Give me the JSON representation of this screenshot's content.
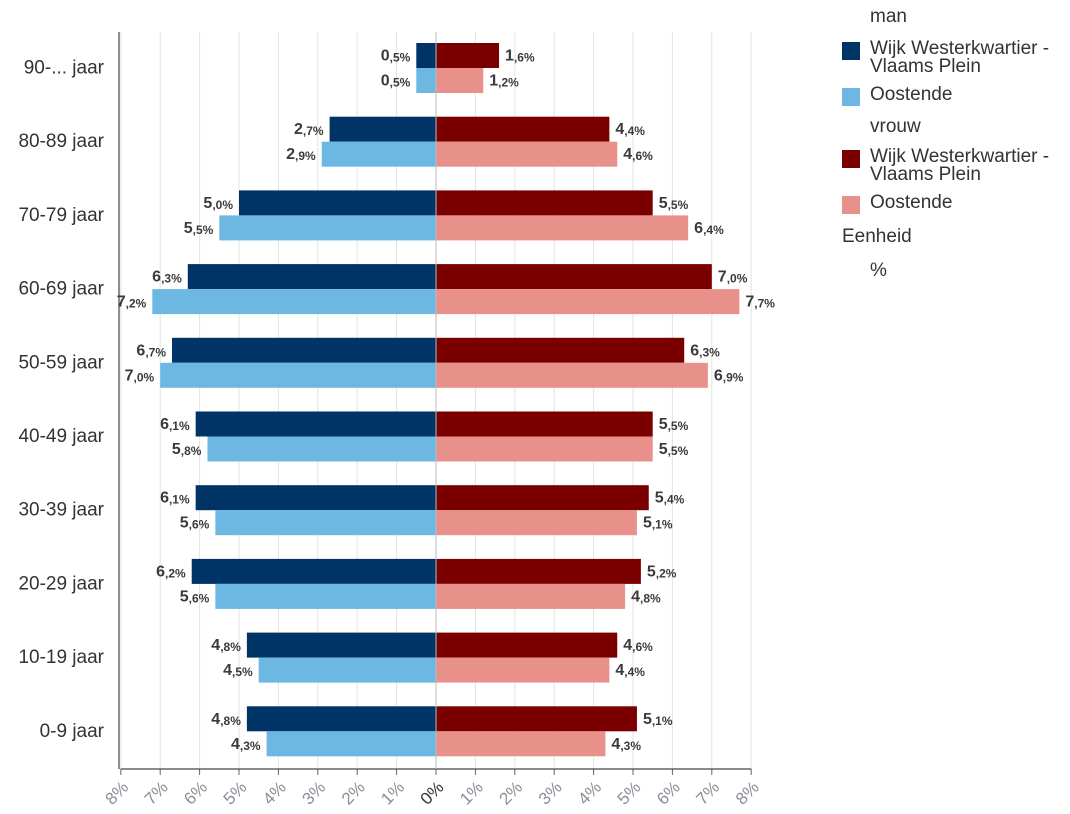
{
  "chart_data": {
    "type": "bar",
    "orientation": "horizontal",
    "subtype": "population-pyramid",
    "categories": [
      "90-... jaar",
      "80-89 jaar",
      "70-79 jaar",
      "60-69 jaar",
      "50-59 jaar",
      "40-49 jaar",
      "30-39 jaar",
      "20-29 jaar",
      "10-19 jaar",
      "0-9 jaar"
    ],
    "x_ticks": [
      "8%",
      "7%",
      "6%",
      "5%",
      "4%",
      "3%",
      "2%",
      "1%",
      "0%",
      "1%",
      "2%",
      "3%",
      "4%",
      "5%",
      "6%",
      "7%",
      "8%"
    ],
    "xlim": [
      -8,
      8
    ],
    "grid": true,
    "legend_position": "right",
    "groups": [
      {
        "name": "man",
        "side": "left",
        "series": [
          {
            "name": "Wijk Westerkwartier - Vlaams Plein",
            "color": "#003366",
            "values": [
              0.5,
              2.7,
              5.0,
              6.3,
              6.7,
              6.1,
              6.1,
              6.2,
              4.8,
              4.8
            ],
            "labels": [
              "0,5%",
              "2,7%",
              "5,0%",
              "6,3%",
              "6,7%",
              "6,1%",
              "6,1%",
              "6,2%",
              "4,8%",
              "4,8%"
            ]
          },
          {
            "name": "Oostende",
            "color": "#6cb8e3",
            "values": [
              0.5,
              2.9,
              5.5,
              7.2,
              7.0,
              5.8,
              5.6,
              5.6,
              4.5,
              4.3
            ],
            "labels": [
              "0,5%",
              "2,9%",
              "5,5%",
              "7,2%",
              "7,0%",
              "5,8%",
              "5,6%",
              "5,6%",
              "4,5%",
              "4,3%"
            ]
          }
        ]
      },
      {
        "name": "vrouw",
        "side": "right",
        "series": [
          {
            "name": "Wijk Westerkwartier - Vlaams Plein",
            "color": "#7a0000",
            "values": [
              1.6,
              4.4,
              5.5,
              7.0,
              6.3,
              5.5,
              5.4,
              5.2,
              4.6,
              5.1
            ],
            "labels": [
              "1,6%",
              "4,4%",
              "5,5%",
              "7,0%",
              "6,3%",
              "5,5%",
              "5,4%",
              "5,2%",
              "4,6%",
              "5,1%"
            ]
          },
          {
            "name": "Oostende",
            "color": "#e8918b",
            "values": [
              1.2,
              4.6,
              6.4,
              7.7,
              6.9,
              5.5,
              5.1,
              4.8,
              4.4,
              4.3
            ],
            "labels": [
              "1,2%",
              "4,6%",
              "6,4%",
              "7,7%",
              "6,9%",
              "5,5%",
              "5,1%",
              "4,8%",
              "4,4%",
              "4,3%"
            ]
          }
        ]
      }
    ],
    "unit_title": "Eenheid",
    "unit": "%"
  }
}
